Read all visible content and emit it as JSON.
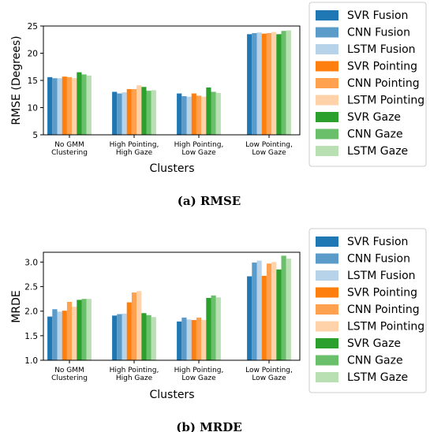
{
  "series_names": [
    "SVR Fusion",
    "CNN Fusion",
    "LSTM Fusion",
    "SVR Pointing",
    "CNN Pointing",
    "LSTM Pointing",
    "SVR Gaze",
    "CNN Gaze",
    "LSTM Gaze"
  ],
  "colors": [
    "#1f77b4",
    "#5b9bc9",
    "#b7d3e9",
    "#ff7f0e",
    "#ffa14f",
    "#ffd2aa",
    "#2ca02c",
    "#6abf6a",
    "#b9e0b3"
  ],
  "chart_data": [
    {
      "type": "bar",
      "caption": "(a) RMSE",
      "xlabel": "Clusters",
      "ylabel": "RMSE (Degrees)",
      "ylim": [
        5,
        25
      ],
      "yticks": [
        "5",
        "10",
        "15",
        "20",
        "25"
      ],
      "categories": [
        [
          "No GMM",
          "Clustering"
        ],
        [
          "High Pointing,",
          "High Gaze"
        ],
        [
          "High Pointing,",
          "Low Gaze"
        ],
        [
          "Low Pointing,",
          "Low Gaze"
        ]
      ],
      "legend": "outside-right",
      "series": [
        {
          "name": "SVR Fusion",
          "values": [
            15.6,
            12.9,
            12.6,
            23.5
          ]
        },
        {
          "name": "CNN Fusion",
          "values": [
            15.4,
            12.6,
            12.1,
            23.7
          ]
        },
        {
          "name": "LSTM Fusion",
          "values": [
            15.4,
            12.8,
            12.0,
            23.8
          ]
        },
        {
          "name": "SVR Pointing",
          "values": [
            15.7,
            13.4,
            12.6,
            23.6
          ]
        },
        {
          "name": "CNN Pointing",
          "values": [
            15.6,
            13.4,
            12.2,
            23.7
          ]
        },
        {
          "name": "LSTM Pointing",
          "values": [
            15.4,
            14.1,
            12.0,
            23.9
          ]
        },
        {
          "name": "SVR Gaze",
          "values": [
            16.5,
            13.8,
            13.7,
            23.5
          ]
        },
        {
          "name": "CNN Gaze",
          "values": [
            16.1,
            13.1,
            12.9,
            24.1
          ]
        },
        {
          "name": "LSTM Gaze",
          "values": [
            15.9,
            13.2,
            12.7,
            24.2
          ]
        }
      ]
    },
    {
      "type": "bar",
      "caption": "(b) MRDE",
      "xlabel": "Clusters",
      "ylabel": "MRDE",
      "ylim": [
        1.0,
        3.2
      ],
      "yticks": [
        "1.0",
        "1.5",
        "2.0",
        "2.5",
        "3.0"
      ],
      "categories": [
        [
          "No GMM",
          "Clustering"
        ],
        [
          "High Pointing,",
          "High Gaze"
        ],
        [
          "High Pointing,",
          "Low Gaze"
        ],
        [
          "Low Pointing,",
          "Low Gaze"
        ]
      ],
      "legend": "outside-right",
      "series": [
        {
          "name": "SVR Fusion",
          "values": [
            1.89,
            1.91,
            1.79,
            2.71
          ]
        },
        {
          "name": "CNN Fusion",
          "values": [
            2.04,
            1.94,
            1.87,
            2.99
          ]
        },
        {
          "name": "LSTM Fusion",
          "values": [
            1.99,
            1.95,
            1.83,
            3.03
          ]
        },
        {
          "name": "SVR Pointing",
          "values": [
            2.01,
            2.18,
            1.82,
            2.72
          ]
        },
        {
          "name": "CNN Pointing",
          "values": [
            2.19,
            2.38,
            1.87,
            2.97
          ]
        },
        {
          "name": "LSTM Pointing",
          "values": [
            2.09,
            2.41,
            1.82,
            3.0
          ]
        },
        {
          "name": "SVR Gaze",
          "values": [
            2.23,
            1.96,
            2.27,
            2.85
          ]
        },
        {
          "name": "CNN Gaze",
          "values": [
            2.25,
            1.92,
            2.32,
            3.13
          ]
        },
        {
          "name": "LSTM Gaze",
          "values": [
            2.25,
            1.88,
            2.28,
            3.07
          ]
        }
      ]
    }
  ]
}
